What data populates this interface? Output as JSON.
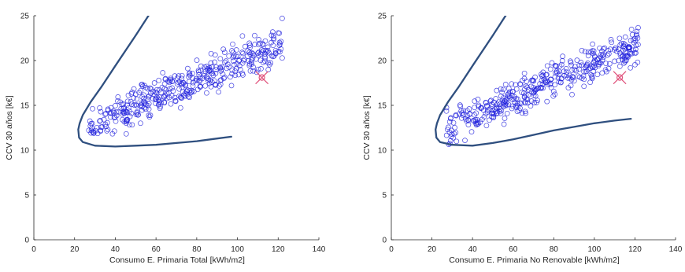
{
  "chart_data": [
    {
      "type": "scatter",
      "xlabel": "Consumo E. Primaria Total [kWh/m2]",
      "ylabel": "CCV 30 años [k€]",
      "xlim": [
        0,
        140
      ],
      "ylim": [
        0,
        25
      ],
      "xticks": [
        "0",
        "20",
        "40",
        "60",
        "80",
        "100",
        "120",
        "140"
      ],
      "yticks": [
        "0",
        "5",
        "10",
        "15",
        "20",
        "25"
      ],
      "grid": false,
      "marker_color": "#2222dd",
      "curve_color": "#2f4f7f",
      "highlight_color": "#e0507a",
      "scatter_region": {
        "x_range": [
          27,
          122
        ],
        "y_center_at_x30": 12.8,
        "y_slope_per_unit_x": 0.1,
        "y_spread": 2.1,
        "point_count": 420
      },
      "highlight_point": {
        "x": 112,
        "y": 18.1
      },
      "frontier_curve": [
        [
          60,
          26.3
        ],
        [
          50,
          22.8
        ],
        [
          40,
          19.4
        ],
        [
          33,
          17.0
        ],
        [
          28,
          15.4
        ],
        [
          24,
          13.9
        ],
        [
          22.5,
          13.0
        ],
        [
          21.8,
          12.3
        ],
        [
          22.2,
          11.4
        ],
        [
          24.0,
          10.9
        ],
        [
          30,
          10.5
        ],
        [
          40,
          10.4
        ],
        [
          50,
          10.5
        ],
        [
          60,
          10.6
        ],
        [
          70,
          10.8
        ],
        [
          80,
          11.0
        ],
        [
          90,
          11.3
        ],
        [
          97,
          11.5
        ]
      ]
    },
    {
      "type": "scatter",
      "xlabel": "Consumo E. Primaria No Renovable [kWh/m2]",
      "ylabel": "CCV 30 años [k€]",
      "xlim": [
        0,
        140
      ],
      "ylim": [
        0,
        25
      ],
      "xticks": [
        "0",
        "20",
        "40",
        "60",
        "80",
        "100",
        "120",
        "140"
      ],
      "yticks": [
        "0",
        "5",
        "10",
        "15",
        "20",
        "25"
      ],
      "grid": false,
      "marker_color": "#2222dd",
      "curve_color": "#2f4f7f",
      "highlight_color": "#e0507a",
      "scatter_region": {
        "x_range": [
          27,
          122
        ],
        "y_center_at_x30": 12.8,
        "y_slope_per_unit_x": 0.1,
        "y_spread": 2.1,
        "point_count": 420
      },
      "highlight_point": {
        "x": 112.5,
        "y": 18.1
      },
      "frontier_curve": [
        [
          60,
          26.3
        ],
        [
          50,
          22.8
        ],
        [
          40,
          19.4
        ],
        [
          33,
          17.0
        ],
        [
          28,
          15.4
        ],
        [
          24,
          13.9
        ],
        [
          22.5,
          13.0
        ],
        [
          21.8,
          12.3
        ],
        [
          22.2,
          11.4
        ],
        [
          24.0,
          10.9
        ],
        [
          30,
          10.6
        ],
        [
          40,
          10.5
        ],
        [
          50,
          10.8
        ],
        [
          60,
          11.2
        ],
        [
          70,
          11.7
        ],
        [
          80,
          12.2
        ],
        [
          90,
          12.6
        ],
        [
          100,
          13.0
        ],
        [
          110,
          13.3
        ],
        [
          118,
          13.5
        ]
      ]
    }
  ]
}
